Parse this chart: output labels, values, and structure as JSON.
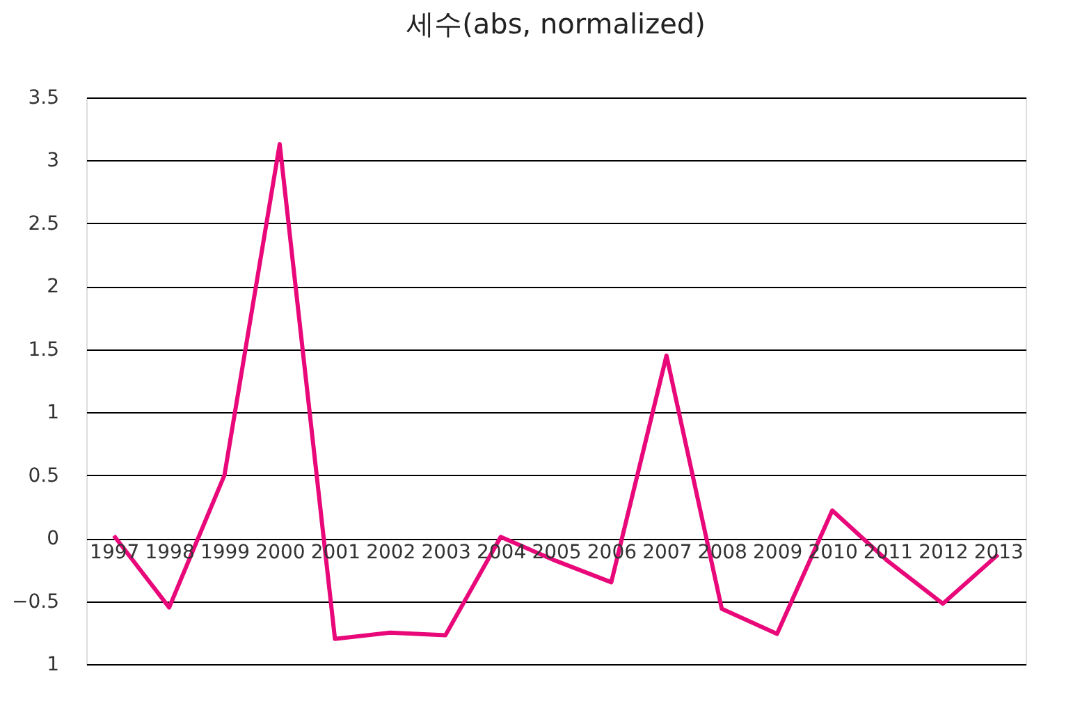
{
  "chart_data": {
    "type": "line",
    "title": "세수(abs, normalized)",
    "categories": [
      "1997",
      "1998",
      "1999",
      "2000",
      "2001",
      "2002",
      "2003",
      "2004",
      "2005",
      "2006",
      "2007",
      "2008",
      "2009",
      "2010",
      "2011",
      "2012",
      "2013"
    ],
    "series": [
      {
        "color": "#e8087a",
        "values": [
          0.02,
          -0.55,
          0.5,
          3.13,
          -0.8,
          -0.75,
          -0.77,
          0.01,
          -0.18,
          -0.35,
          1.45,
          -0.56,
          -0.76,
          0.22,
          -0.18,
          -0.52,
          -0.13
        ]
      }
    ],
    "ylim": [
      -1,
      3.5
    ],
    "yticks": [
      {
        "value": -1,
        "label": "1"
      },
      -0.5,
      0,
      0.5,
      1,
      1.5,
      2,
      2.5,
      3,
      3.5
    ],
    "grid": "y",
    "marker": "none",
    "line_style": "solid"
  }
}
